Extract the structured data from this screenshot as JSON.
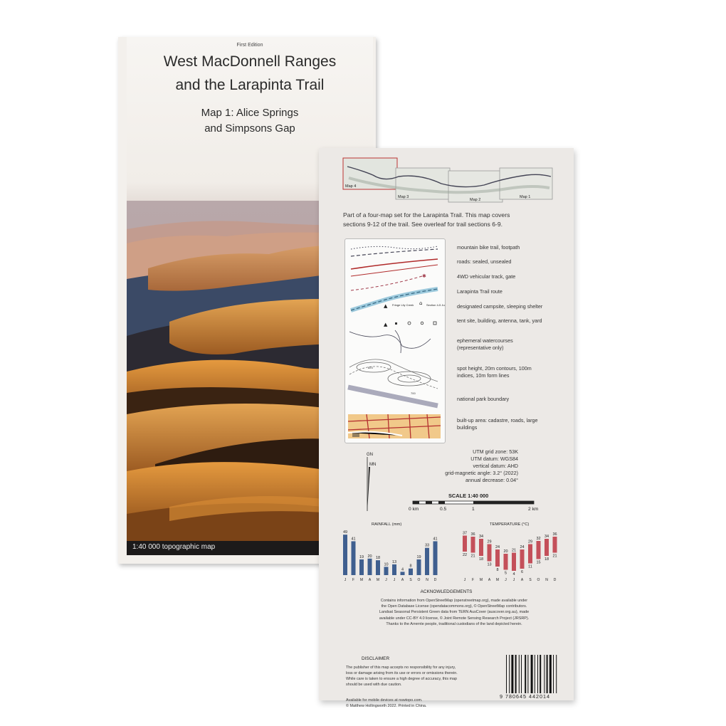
{
  "front_cover": {
    "edition": "First Edition",
    "title_line1": "West MacDonnell Ranges",
    "title_line2": "and the Larapinta Trail",
    "subtitle_line1": "Map 1: Alice Springs",
    "subtitle_line2": "and Simpsons Gap",
    "footer": "1:40 000 topographic map"
  },
  "back_cover": {
    "overview_labels": [
      "Map 4",
      "Map 3",
      "Map 2",
      "Map 1"
    ],
    "intro_line1": "Part of a four-map set for the Larapinta Trail. This map covers",
    "intro_line2": "sections 9-12 of the trail. See overleaf for trail sections 6-9.",
    "legend_items": [
      "mountain bike trail, footpath",
      "roads: sealed, unsealed",
      "4WD vehicular track, gate",
      "Larapinta Trail route",
      "designated campsite, sleeping shelter",
      "tent site, building, antenna, tank, yard",
      "ephemeral watercourses (representative only)",
      "spot height, 20m contours, 100m indices, 10m form lines",
      "national park boundary",
      "built-up area: cadastre, roads, large buildings"
    ],
    "legend_sample_labels": {
      "fringe": "Fringe Lily Creek",
      "junction": "Section 4-5 Junction",
      "spot": "823",
      "contour": "700"
    },
    "north_labels": {
      "gn": "GN",
      "mn": "MN"
    },
    "utm": [
      "UTM grid zone: 53K",
      "UTM datum: WGS84",
      "vertical datum: AHD",
      "grid-magnetic angle: 3.2° (2022)",
      "annual decrease: 0.04°"
    ],
    "scale": {
      "title": "SCALE 1:40 000",
      "labels": [
        "0 km",
        "0.5",
        "1",
        "2 km"
      ]
    },
    "rainfall": {
      "title": "RAINFALL (mm)",
      "color": "#3f5f8f",
      "months": [
        "J",
        "F",
        "M",
        "A",
        "M",
        "J",
        "J",
        "A",
        "S",
        "O",
        "N",
        "D"
      ],
      "values": [
        49,
        41,
        19,
        20,
        18,
        10,
        13,
        4,
        8,
        19,
        33,
        41
      ]
    },
    "temperature": {
      "title": "TEMPERATURE (°C)",
      "color": "#c4505a",
      "months": [
        "J",
        "F",
        "M",
        "A",
        "M",
        "J",
        "J",
        "A",
        "S",
        "O",
        "N",
        "D"
      ],
      "max": [
        37,
        36,
        34,
        29,
        24,
        20,
        21,
        24,
        29,
        32,
        34,
        36
      ],
      "min": [
        22,
        21,
        18,
        13,
        8,
        5,
        4,
        6,
        11,
        15,
        18,
        21
      ]
    },
    "acknowledgements_title": "ACKNOWLEDGEMENTS",
    "acknowledgements_lines": [
      "Contains information from OpenStreetMap (openstreetmap.org), made available under",
      "the Open Database License (opendatacommons.org), © OpenStreetMap contributors.",
      "Landsat Seasonal Persistent Green data from TERN AusCover (auscover.org.au), made",
      "available under CC-BY 4.0 license, © Joint Remote Sensing Research Project (JRSRP).",
      "Thanks to the Arrernte people, traditional custodians of the land depicted herein."
    ],
    "disclaimer_title": "DISCLAIMER",
    "disclaimer_lines": [
      "The publisher of this map accepts no responsibility for any injury,",
      "loss or damage arising from its use or errors or omissions therein.",
      "While care is taken to ensure a high degree of accuracy, this map",
      "should be used with due caution."
    ],
    "footer_line1": "Available for mobile devices at nswtopo.com.",
    "footer_line2": "© Matthew Hollingworth 2022. Printed in China.",
    "isbn": "9 780645 442014"
  }
}
